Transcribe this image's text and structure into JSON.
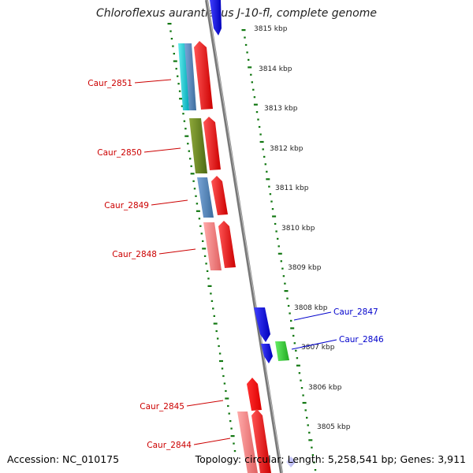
{
  "header": {
    "title": "Chloroflexus aurantiacus J-10-fl, complete genome"
  },
  "footer": {
    "accession": "Accession: NC_010175",
    "topology": "Topology: circular; Length: 5,258,541 bp; Genes: 3,911"
  },
  "scale": {
    "unit": "kbp",
    "ticks": [
      {
        "label": "3815 kbp"
      },
      {
        "label": "3814 kbp"
      },
      {
        "label": "3813 kbp"
      },
      {
        "label": "3812 kbp"
      },
      {
        "label": "3811 kbp"
      },
      {
        "label": "3810 kbp"
      },
      {
        "label": "3809 kbp"
      },
      {
        "label": "3808 kbp"
      },
      {
        "label": "3807 kbp"
      },
      {
        "label": "3806 kbp"
      },
      {
        "label": "3805 kbp"
      }
    ]
  },
  "genes": {
    "labels": [
      {
        "name": "Caur_2851",
        "strand": "minus"
      },
      {
        "name": "Caur_2850",
        "strand": "minus"
      },
      {
        "name": "Caur_2849",
        "strand": "minus"
      },
      {
        "name": "Caur_2848",
        "strand": "minus"
      },
      {
        "name": "Caur_2847",
        "strand": "plus"
      },
      {
        "name": "Caur_2846",
        "strand": "plus"
      },
      {
        "name": "Caur_2845",
        "strand": "minus"
      },
      {
        "name": "Caur_2844",
        "strand": "minus"
      }
    ]
  },
  "colors": {
    "minus_label": "#cc0000",
    "plus_label": "#0000cc",
    "cds_red": "#ee0000",
    "cds_blue": "#1010dd",
    "gc_green": "#117711",
    "backbone": "#777777"
  }
}
